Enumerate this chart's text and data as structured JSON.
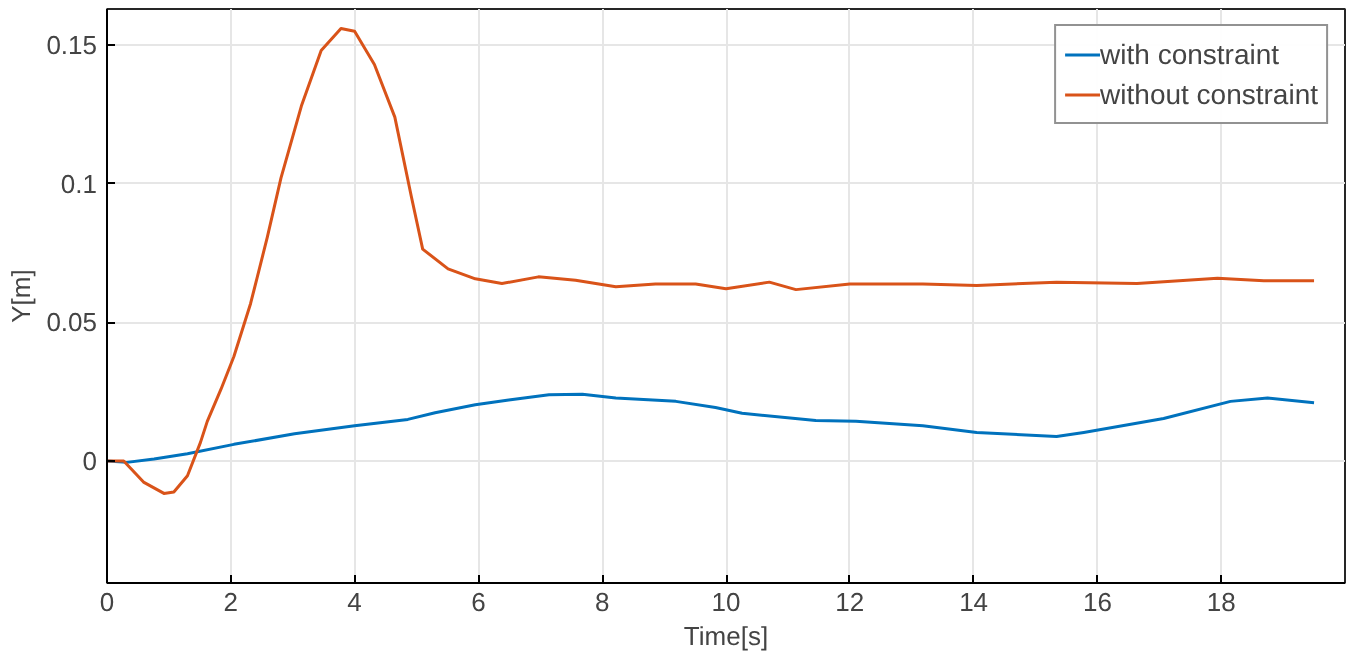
{
  "chart_data": {
    "type": "line",
    "xlabel": "Time[s]",
    "ylabel": "Y[m]",
    "xlim": [
      0,
      20
    ],
    "ylim": [
      -0.044,
      0.163
    ],
    "xticks": [
      0,
      2,
      4,
      6,
      8,
      10,
      12,
      14,
      16,
      18
    ],
    "yticks": [
      0,
      0.05,
      0.1,
      0.15
    ],
    "grid": true,
    "legend": "top right",
    "marker": "none",
    "line_style": "solid",
    "series": [
      {
        "name": "with constraint",
        "color": "#0072bd",
        "x": [
          0,
          0.32,
          0.76,
          1.3,
          2.05,
          3.03,
          4.0,
          4.86,
          5.3,
          5.95,
          6.49,
          7.14,
          7.68,
          8.22,
          9.19,
          9.83,
          10.26,
          11.45,
          12.1,
          13.18,
          14.05,
          15.34,
          15.78,
          17.07,
          18.15,
          18.75,
          19.5
        ],
        "values": [
          0,
          -0.0005,
          0.0007,
          0.0026,
          0.006,
          0.0098,
          0.0127,
          0.015,
          0.0174,
          0.0203,
          0.022,
          0.0239,
          0.0241,
          0.0227,
          0.0215,
          0.0193,
          0.0172,
          0.0146,
          0.0143,
          0.0127,
          0.0103,
          0.0088,
          0.0103,
          0.0153,
          0.0215,
          0.0227,
          0.021
        ]
      },
      {
        "name": "without constraint",
        "color": "#d95319",
        "x": [
          0,
          0.27,
          0.59,
          0.92,
          1.08,
          1.3,
          1.51,
          1.62,
          1.84,
          2.05,
          2.32,
          2.59,
          2.81,
          3.14,
          3.46,
          3.78,
          4.0,
          4.32,
          4.65,
          4.92,
          5.1,
          5.51,
          5.95,
          6.38,
          6.97,
          7.57,
          8.22,
          8.86,
          9.51,
          10.0,
          10.7,
          11.13,
          12.0,
          13.18,
          14.05,
          15.34,
          16.64,
          17.94,
          18.69,
          19.5
        ],
        "values": [
          0,
          0,
          -0.0076,
          -0.0117,
          -0.0112,
          -0.0053,
          0.0067,
          0.0143,
          0.0258,
          0.0377,
          0.0568,
          0.0807,
          0.102,
          0.128,
          0.148,
          0.156,
          0.155,
          0.143,
          0.124,
          0.095,
          0.0764,
          0.0693,
          0.0657,
          0.064,
          0.0664,
          0.0652,
          0.0628,
          0.0638,
          0.0638,
          0.0621,
          0.0645,
          0.0618,
          0.0638,
          0.0638,
          0.0633,
          0.0645,
          0.064,
          0.0659,
          0.065,
          0.065
        ]
      }
    ]
  }
}
